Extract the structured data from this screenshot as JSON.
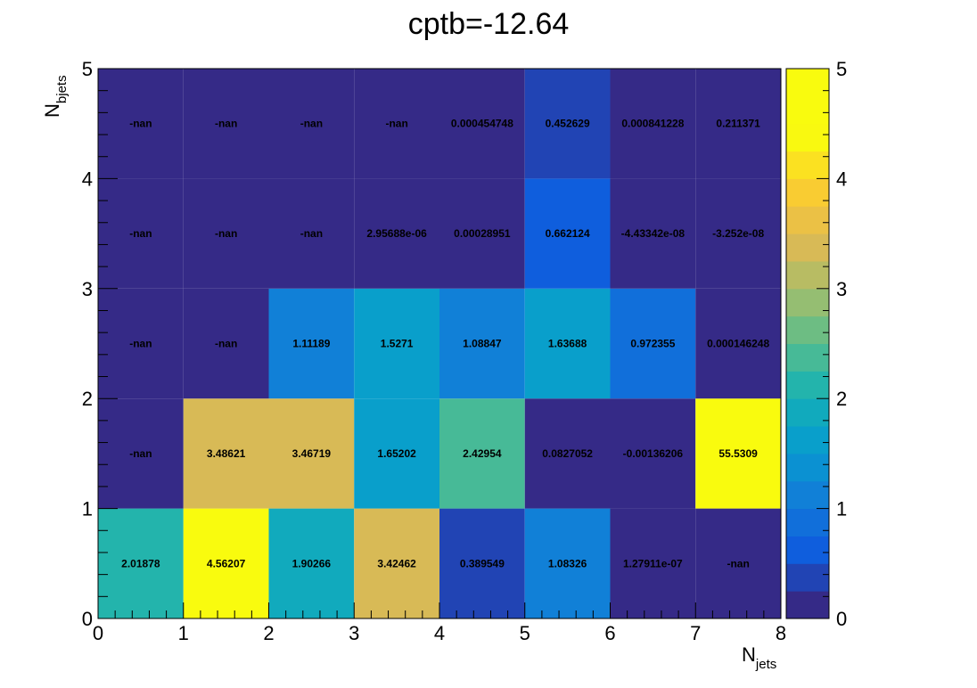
{
  "chart_data": {
    "type": "heatmap",
    "title": "cptb=-12.64",
    "xlabel": {
      "main": "N",
      "sub": "jets"
    },
    "ylabel": {
      "main": "N",
      "sub": "bjets"
    },
    "xlim": [
      0,
      8
    ],
    "ylim": [
      0,
      5
    ],
    "x_ticks": [
      "0",
      "1",
      "2",
      "3",
      "4",
      "5",
      "6",
      "7",
      "8"
    ],
    "y_ticks": [
      "0",
      "1",
      "2",
      "3",
      "4",
      "5"
    ],
    "colorbar": {
      "range": [
        0,
        5
      ],
      "ticks": [
        "0",
        "1",
        "2",
        "3",
        "4",
        "5"
      ],
      "palette": "parula"
    },
    "cells": [
      [
        "2.01878",
        "4.56207",
        "1.90266",
        "3.42462",
        "0.389549",
        "1.08326",
        "1.27911e-07",
        "-nan"
      ],
      [
        "-nan",
        "3.48621",
        "3.46719",
        "1.65202",
        "2.42954",
        "0.0827052",
        "-0.00136206",
        "55.5309"
      ],
      [
        "-nan",
        "-nan",
        "1.11189",
        "1.5271",
        "1.08847",
        "1.63688",
        "0.972355",
        "0.000146248"
      ],
      [
        "-nan",
        "-nan",
        "-nan",
        "2.95688e-06",
        "0.00028951",
        "0.662124",
        "-4.43342e-08",
        "-3.252e-08"
      ],
      [
        "-nan",
        "-nan",
        "-nan",
        "-nan",
        "0.000454748",
        "0.452629",
        "0.000841228",
        "0.211371"
      ]
    ]
  }
}
